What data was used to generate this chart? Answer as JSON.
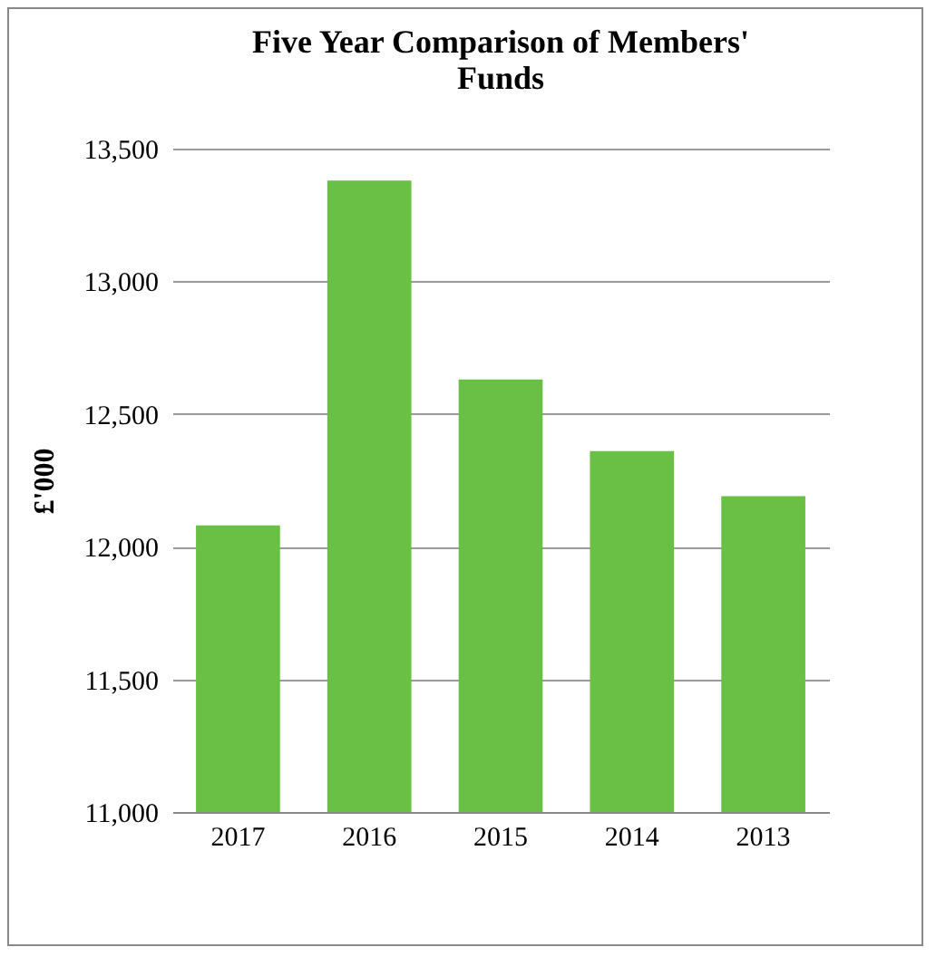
{
  "chart_data": {
    "type": "bar",
    "title": "Five Year Comparison of Members' Funds",
    "ylabel": "£'000",
    "categories": [
      "2017",
      "2016",
      "2015",
      "2014",
      "2013"
    ],
    "values": [
      12080,
      13380,
      12630,
      12360,
      12190
    ],
    "color": "#6abf45",
    "ylim": [
      11000,
      13500
    ],
    "yticks": [
      {
        "value": 11000,
        "label": "11,000"
      },
      {
        "value": 11500,
        "label": "11,500"
      },
      {
        "value": 12000,
        "label": "12,000"
      },
      {
        "value": 12500,
        "label": "12,500"
      },
      {
        "value": 13000,
        "label": "13,000"
      },
      {
        "value": 13500,
        "label": "13,500"
      }
    ],
    "grid": "y"
  }
}
